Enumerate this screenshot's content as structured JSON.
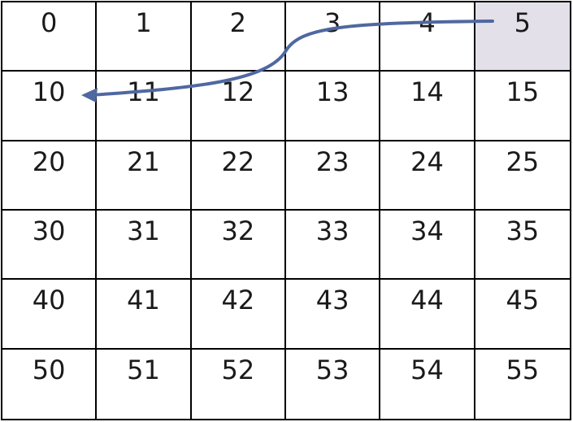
{
  "grid": {
    "rows": [
      [
        "0",
        "1",
        "2",
        "3",
        "4",
        "5"
      ],
      [
        "10",
        "11",
        "12",
        "13",
        "14",
        "15"
      ],
      [
        "20",
        "21",
        "22",
        "23",
        "24",
        "25"
      ],
      [
        "30",
        "31",
        "32",
        "33",
        "34",
        "35"
      ],
      [
        "40",
        "41",
        "42",
        "43",
        "44",
        "45"
      ],
      [
        "50",
        "51",
        "52",
        "53",
        "54",
        "55"
      ]
    ],
    "highlighted_cell": "5",
    "highlight_color": "#e3e0ea"
  },
  "arrow": {
    "from": "5",
    "to": "10",
    "color": "#4f68a0"
  }
}
